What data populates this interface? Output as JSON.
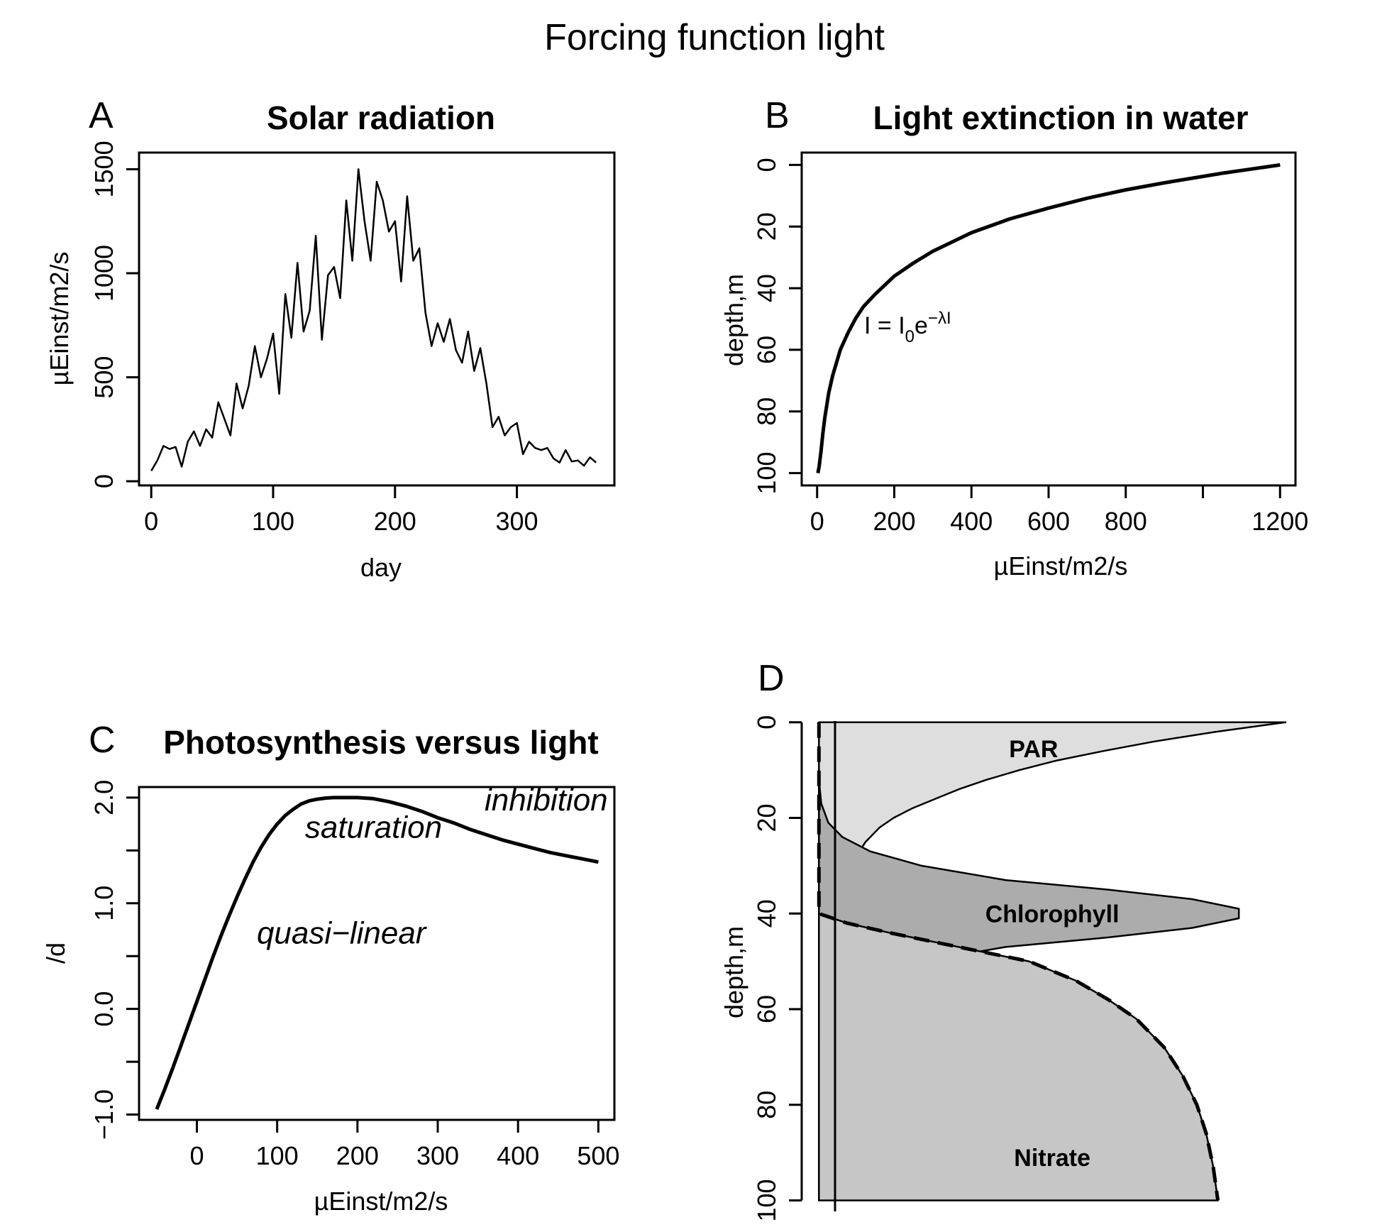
{
  "figure_title": "Forcing function light",
  "chart_data": [
    {
      "panel_letter": "A",
      "type": "line",
      "title": "Solar radiation",
      "xlabel": "day",
      "ylabel": "µEinst/m2/s",
      "xlim": [
        -10,
        380
      ],
      "ylim": [
        -20,
        1580
      ],
      "xticks": [
        0,
        100,
        200,
        300
      ],
      "yticks": [
        0,
        500,
        1000,
        1500
      ],
      "series": [
        {
          "x": [
            0,
            5,
            10,
            15,
            20,
            25,
            30,
            35,
            40,
            45,
            50,
            55,
            60,
            65,
            70,
            75,
            80,
            85,
            90,
            95,
            100,
            105,
            110,
            115,
            120,
            125,
            130,
            135,
            140,
            145,
            150,
            155,
            160,
            165,
            170,
            175,
            180,
            185,
            190,
            195,
            200,
            205,
            210,
            215,
            220,
            225,
            230,
            235,
            240,
            245,
            250,
            255,
            260,
            265,
            270,
            275,
            280,
            285,
            290,
            295,
            300,
            305,
            310,
            315,
            320,
            325,
            330,
            335,
            340,
            345,
            350,
            355,
            360,
            365
          ],
          "y": [
            50,
            100,
            170,
            155,
            165,
            70,
            190,
            240,
            170,
            250,
            210,
            380,
            300,
            220,
            470,
            350,
            460,
            650,
            500,
            590,
            710,
            420,
            900,
            690,
            1050,
            720,
            820,
            1180,
            680,
            990,
            1030,
            880,
            1350,
            1060,
            1500,
            1250,
            1060,
            1440,
            1350,
            1200,
            1250,
            960,
            1370,
            1060,
            1120,
            810,
            650,
            760,
            670,
            780,
            630,
            570,
            720,
            530,
            640,
            470,
            260,
            310,
            220,
            260,
            280,
            130,
            190,
            160,
            150,
            160,
            110,
            90,
            150,
            95,
            100,
            75,
            115,
            90
          ]
        }
      ]
    },
    {
      "panel_letter": "B",
      "type": "line",
      "title": "Light extinction in water",
      "xlabel": "µEinst/m2/s",
      "ylabel": "depth,m",
      "xlim": [
        -40,
        1240
      ],
      "ylim": [
        104,
        -4
      ],
      "xticks": [
        0,
        200,
        400,
        600,
        800,
        1200
      ],
      "xtick_marks": [
        0,
        200,
        400,
        600,
        800,
        1000,
        1200
      ],
      "yticks": [
        0,
        20,
        40,
        60,
        80,
        100
      ],
      "formula_text": {
        "base": "I = I",
        "sub": "0",
        "mid": "e",
        "sup": "−λI"
      },
      "series": [
        {
          "x": [
            1200,
            1050,
            900,
            800,
            700,
            600,
            500,
            400,
            300,
            250,
            200,
            150,
            120,
            100,
            80,
            60,
            40,
            30,
            20,
            15,
            10,
            5,
            2
          ],
          "y": [
            0,
            2.7,
            5.8,
            8.1,
            10.8,
            14.0,
            17.5,
            22.0,
            28.0,
            31.8,
            36.1,
            42.0,
            46.0,
            49.8,
            54.5,
            60.0,
            68.5,
            74.0,
            82.0,
            87.0,
            93.0,
            98.0,
            100
          ]
        }
      ]
    },
    {
      "panel_letter": "C",
      "type": "line",
      "title": "Photosynthesis versus light",
      "xlabel": "µEinst/m2/s",
      "ylabel": "/d",
      "xlim": [
        -72,
        520
      ],
      "ylim": [
        -1.05,
        2.1
      ],
      "xticks": [
        0,
        100,
        200,
        300,
        400,
        500
      ],
      "yticks": [
        -1.0,
        0.0,
        1.0,
        2.0
      ],
      "ytick_marks": [
        -1.0,
        -0.5,
        0.0,
        0.5,
        1.0,
        1.5,
        2.0
      ],
      "ytick_labels": [
        "−1.0",
        "0.0",
        "1.0",
        "2.0"
      ],
      "annotations": [
        {
          "text": "quasi−linear",
          "x": 180,
          "y": 0.62
        },
        {
          "text": "saturation",
          "x": 220,
          "y": 1.62
        },
        {
          "text": "inhibition",
          "x": 435,
          "y": 1.88
        }
      ],
      "series": [
        {
          "x": [
            -50,
            -40,
            -30,
            -20,
            -10,
            0,
            10,
            20,
            30,
            40,
            50,
            60,
            70,
            80,
            90,
            100,
            110,
            120,
            130,
            140,
            150,
            160,
            170,
            180,
            190,
            200,
            220,
            240,
            260,
            280,
            300,
            320,
            340,
            360,
            380,
            400,
            420,
            440,
            460,
            480,
            500
          ],
          "y": [
            -0.95,
            -0.76,
            -0.56,
            -0.35,
            -0.14,
            0.07,
            0.28,
            0.49,
            0.69,
            0.88,
            1.06,
            1.23,
            1.39,
            1.53,
            1.65,
            1.75,
            1.83,
            1.89,
            1.94,
            1.97,
            1.985,
            1.995,
            2.0,
            2.0,
            2.0,
            2.0,
            1.99,
            1.96,
            1.92,
            1.87,
            1.81,
            1.76,
            1.7,
            1.65,
            1.6,
            1.56,
            1.52,
            1.48,
            1.45,
            1.42,
            1.39
          ]
        }
      ]
    },
    {
      "panel_letter": "D",
      "type": "area",
      "title": "",
      "xlabel": "",
      "ylabel": "depth,m",
      "xlim": [
        -0.04,
        1.0
      ],
      "ylim": [
        102,
        -1
      ],
      "yticks": [
        0,
        20,
        40,
        60,
        80,
        100
      ],
      "labels": [
        {
          "text": "PAR",
          "x": 0.46,
          "y": 5.5
        },
        {
          "text": "Chlorophyll",
          "x": 0.5,
          "y": 40
        },
        {
          "text": "Nitrate",
          "x": 0.5,
          "y": 91
        }
      ],
      "series": [
        {
          "name": "PAR",
          "fill": "#dedede",
          "x": [
            1.0,
            0.85,
            0.72,
            0.61,
            0.51,
            0.43,
            0.36,
            0.3,
            0.25,
            0.2,
            0.16,
            0.13,
            0.1,
            0.08,
            0.06,
            0.04,
            0.03,
            0.015,
            0.006,
            0.002
          ],
          "y": [
            0,
            2,
            4,
            6,
            8,
            10,
            12,
            14,
            16,
            18,
            20,
            22,
            25,
            28,
            32,
            38,
            44,
            55,
            70,
            100
          ]
        },
        {
          "name": "Chlorophyll",
          "fill": "#acacac",
          "x": [
            0.0,
            0.005,
            0.02,
            0.05,
            0.11,
            0.22,
            0.4,
            0.62,
            0.8,
            0.9,
            0.9,
            0.8,
            0.62,
            0.4,
            0.22,
            0.11,
            0.05,
            0.02,
            0.005,
            0.0
          ],
          "y": [
            12,
            17,
            21,
            24,
            27,
            30,
            33,
            35,
            37,
            39,
            41,
            43,
            45,
            47,
            50,
            53,
            56,
            59,
            63,
            66
          ]
        },
        {
          "name": "Nitrate",
          "fill": "#c6c6c6",
          "x": [
            0.0,
            0.06,
            0.15,
            0.25,
            0.35,
            0.45,
            0.55,
            0.62,
            0.68,
            0.74,
            0.78,
            0.81,
            0.83,
            0.845,
            0.855
          ],
          "y": [
            40,
            42,
            44,
            46,
            48,
            50,
            54,
            58,
            62,
            68,
            74,
            80,
            86,
            93,
            100
          ]
        }
      ]
    }
  ]
}
